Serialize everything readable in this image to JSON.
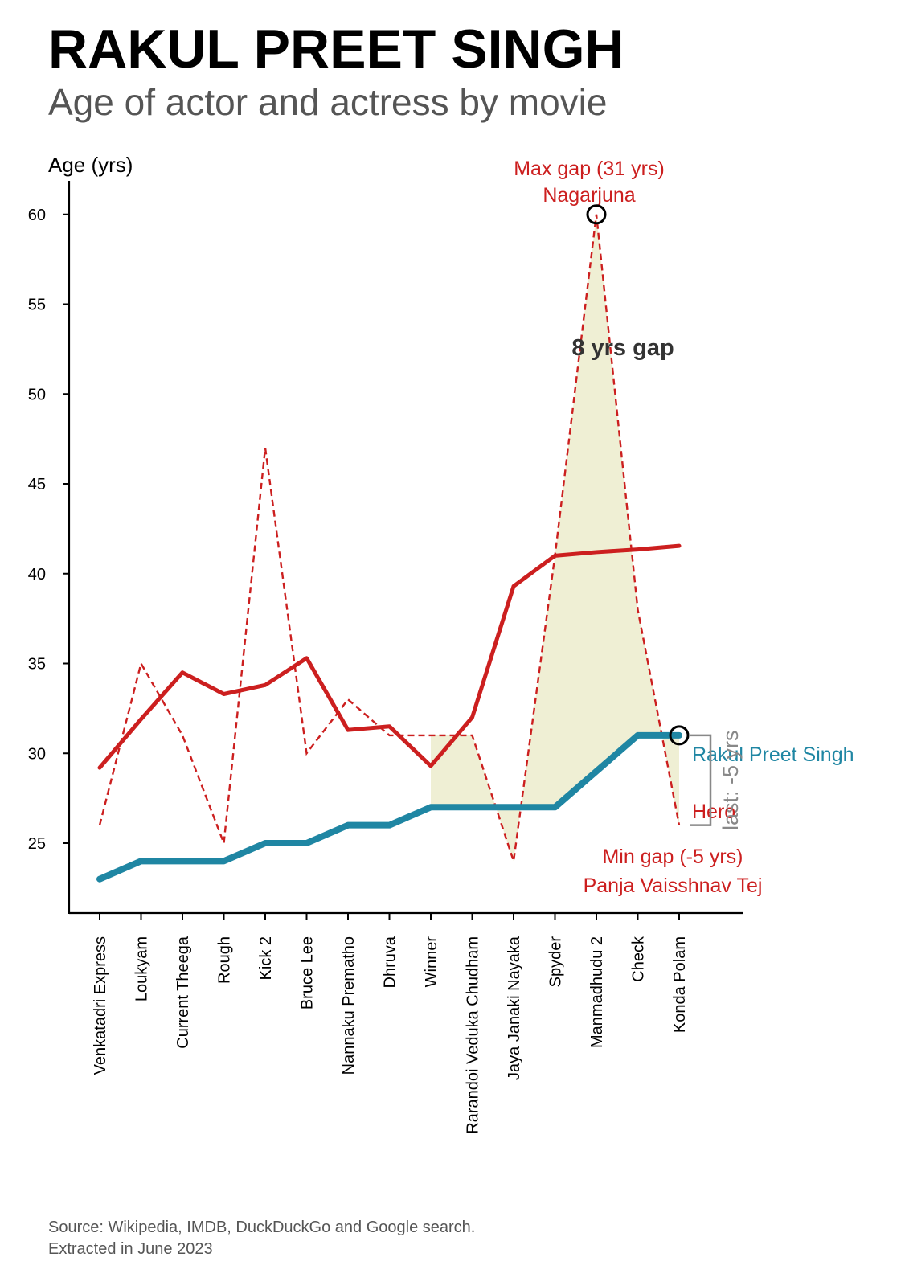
{
  "title": "RAKUL PREET SINGH",
  "subtitle": "Age of actor and actress by movie",
  "source": {
    "line1": "Source: Wikipedia, IMDB, DuckDuckGo and Google search.",
    "line2": "Extracted in June 2023"
  },
  "colors": {
    "actress": "#1f86a3",
    "hero": "#cc1f1f",
    "fill": "#efefd4",
    "text": "#000000",
    "gray": "#888888",
    "annotation": "#333333"
  },
  "chart_data": {
    "type": "line",
    "ylabel": "Age (yrs)",
    "ylim": [
      21,
      62
    ],
    "yticks": [
      25,
      30,
      35,
      40,
      45,
      50,
      55,
      60
    ],
    "categories": [
      "Venkatadri Express",
      "Loukyam",
      "Current Theega",
      "Rough",
      "Kick 2",
      "Bruce Lee",
      "Nannaku Prematho",
      "Dhruva",
      "Winner",
      "Rarandoi Veduka Chudham",
      "Jaya Janaki Nayaka",
      "Spyder",
      "Manmadhudu 2",
      "Check",
      "Konda Polam"
    ],
    "series": [
      {
        "name": "Rakul Preet Singh",
        "style": "solid-thick",
        "values": [
          23,
          24,
          24,
          24,
          25,
          25,
          26,
          26,
          27,
          27,
          27,
          27,
          29,
          31,
          31
        ]
      },
      {
        "name": "Hero",
        "style": "dashed",
        "values": [
          26,
          35,
          31,
          25,
          47,
          30,
          33,
          31,
          31,
          31,
          24,
          41,
          60,
          38,
          26
        ]
      },
      {
        "style": "solid-trend",
        "values": [
          29.2,
          31.9,
          34.5,
          33.3,
          33.8,
          35.3,
          31.3,
          31.5,
          29.3,
          32.0,
          39.3,
          41.0,
          41.2,
          41.35,
          41.55
        ]
      }
    ],
    "fill_between_from_index": 8,
    "annotations": {
      "max_gap": {
        "line1": "Max gap (31 yrs)",
        "line2": "Nagarjuna",
        "index": 12,
        "value": 60
      },
      "min_gap": {
        "line1": "Min gap (-5 yrs)",
        "line2": "Panja Vaisshnav Tej"
      },
      "gap_label": "8 yrs gap",
      "last_gap": "last: -5 yrs",
      "last_point": {
        "index": 14,
        "value": 31
      },
      "bracket": {
        "from": 26,
        "to": 31
      }
    }
  }
}
